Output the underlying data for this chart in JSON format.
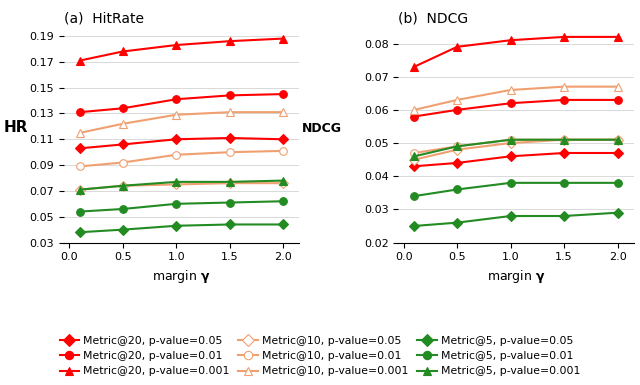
{
  "x": [
    0.1,
    0.5,
    1.0,
    1.5,
    2.0
  ],
  "hr": {
    "m20_p001": [
      0.171,
      0.178,
      0.183,
      0.186,
      0.188
    ],
    "m20_p01": [
      0.131,
      0.134,
      0.141,
      0.144,
      0.145
    ],
    "m20_p05": [
      0.103,
      0.106,
      0.11,
      0.111,
      0.11
    ],
    "m10_p001": [
      0.115,
      0.122,
      0.129,
      0.131,
      0.131
    ],
    "m10_p01": [
      0.089,
      0.092,
      0.098,
      0.1,
      0.101
    ],
    "m10_p05": [
      0.071,
      0.074,
      0.075,
      0.076,
      0.076
    ],
    "m5_p001": [
      0.071,
      0.074,
      0.077,
      0.077,
      0.078
    ],
    "m5_p01": [
      0.054,
      0.056,
      0.06,
      0.061,
      0.062
    ],
    "m5_p05": [
      0.038,
      0.04,
      0.043,
      0.044,
      0.044
    ]
  },
  "ndcg": {
    "m20_p001": [
      0.073,
      0.079,
      0.081,
      0.082,
      0.082
    ],
    "m20_p01": [
      0.058,
      0.06,
      0.062,
      0.063,
      0.063
    ],
    "m20_p05": [
      0.043,
      0.044,
      0.046,
      0.047,
      0.047
    ],
    "m10_p001": [
      0.06,
      0.063,
      0.066,
      0.067,
      0.067
    ],
    "m10_p01": [
      0.047,
      0.049,
      0.051,
      0.051,
      0.051
    ],
    "m10_p05": [
      0.045,
      0.048,
      0.05,
      0.051,
      0.051
    ],
    "m5_p001": [
      0.046,
      0.049,
      0.051,
      0.051,
      0.051
    ],
    "m5_p01": [
      0.034,
      0.036,
      0.038,
      0.038,
      0.038
    ],
    "m5_p05": [
      0.025,
      0.026,
      0.028,
      0.028,
      0.029
    ]
  },
  "colors": {
    "red": "#FF0000",
    "orange": "#F0A070",
    "green": "#228B22"
  },
  "hr_ylim": [
    0.03,
    0.197
  ],
  "ndcg_ylim": [
    0.02,
    0.085
  ],
  "hr_yticks": [
    0.03,
    0.05,
    0.07,
    0.09,
    0.11,
    0.13,
    0.15,
    0.17,
    0.19
  ],
  "ndcg_yticks": [
    0.02,
    0.03,
    0.04,
    0.05,
    0.06,
    0.07,
    0.08
  ],
  "xlim": [
    -0.05,
    2.15
  ],
  "xticks": [
    0,
    0.5,
    1,
    1.5,
    2
  ],
  "legend_labels": [
    "Metric@20, p-value=0.05",
    "Metric@20, p-value=0.01",
    "Metric@20, p-value=0.001",
    "Metric@10, p-value=0.05",
    "Metric@10, p-value=0.01",
    "Metric@10, p-value=0.001",
    "Metric@5, p-value=0.05",
    "Metric@5, p-value=0.01",
    "Metric@5, p-value=0.001"
  ]
}
